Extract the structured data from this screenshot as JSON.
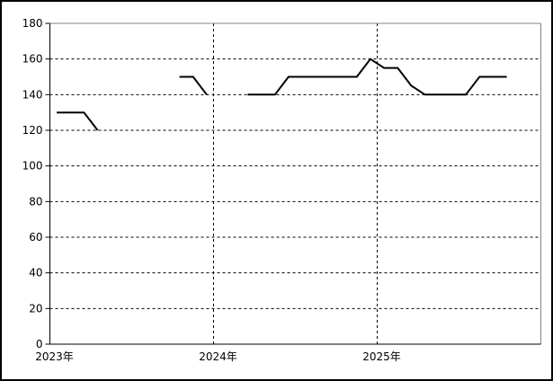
{
  "window": {
    "background": "#ffffff",
    "border_color": "#000000"
  },
  "chart_data": {
    "type": "line",
    "title": "",
    "xlabel": "",
    "ylabel": "",
    "ylim": [
      0,
      180
    ],
    "ytick_step": 20,
    "yticks": [
      0,
      20,
      40,
      60,
      80,
      100,
      120,
      140,
      160,
      180
    ],
    "x_tick_labels": [
      "2023年",
      "2024年",
      "2025年"
    ],
    "x_range_months": 36,
    "months": [
      "2023-01",
      "2023-02",
      "2023-03",
      "2023-04",
      "2023-05",
      "2023-06",
      "2023-07",
      "2023-08",
      "2023-09",
      "2023-10",
      "2023-11",
      "2023-12",
      "2024-01",
      "2024-02",
      "2024-03",
      "2024-04",
      "2024-05",
      "2024-06",
      "2024-07",
      "2024-08",
      "2024-09",
      "2024-10",
      "2024-11",
      "2024-12",
      "2025-01",
      "2025-02",
      "2025-03",
      "2025-04",
      "2025-05",
      "2025-06",
      "2025-07",
      "2025-08",
      "2025-09",
      "2025-10",
      "2025-11",
      "2025-12"
    ],
    "series": [
      {
        "name": "",
        "values": [
          130,
          130,
          130,
          120,
          null,
          null,
          null,
          null,
          null,
          150,
          150,
          140,
          null,
          null,
          140,
          140,
          140,
          150,
          150,
          150,
          150,
          150,
          150,
          160,
          155,
          155,
          145,
          140,
          140,
          140,
          140,
          150,
          150,
          150,
          null,
          null
        ]
      }
    ],
    "grid": {
      "horizontal": true,
      "vertical": true,
      "style": "dashed",
      "color": "#000000"
    },
    "legend": "none",
    "line_color": "#000000",
    "axis_color": "#000000",
    "plot_border_color": "#808080"
  }
}
